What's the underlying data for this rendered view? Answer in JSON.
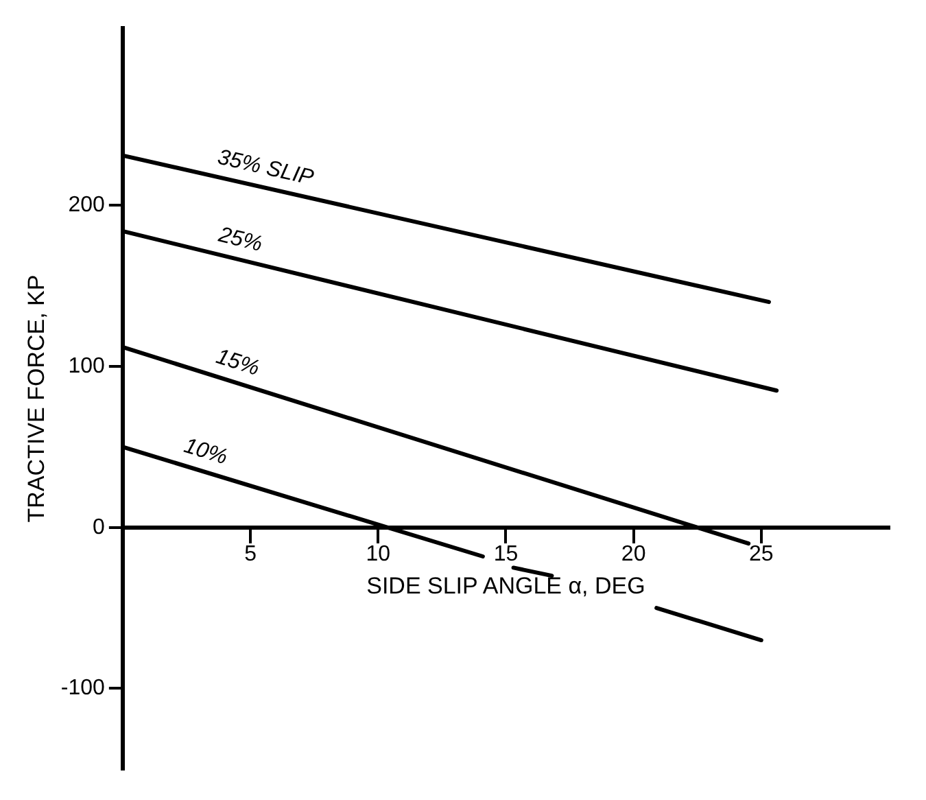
{
  "chart_data": {
    "type": "line",
    "xlabel": "SIDE SLIP ANGLE α, DEG",
    "ylabel": "TRACTIVE FORCE, KP",
    "xlim": [
      0,
      30
    ],
    "ylim": [
      -150,
      310
    ],
    "xticks": [
      5,
      10,
      15,
      20,
      25
    ],
    "yticks": [
      -100,
      0,
      100,
      200
    ],
    "legend": false,
    "grid": false,
    "marker": "none",
    "line_style": "solid",
    "series": [
      {
        "name": "35% SLIP",
        "color": "#000000",
        "x": [
          0,
          25.3
        ],
        "values": [
          231,
          140
        ]
      },
      {
        "name": "25%",
        "color": "#000000",
        "x": [
          0,
          25.6
        ],
        "values": [
          184,
          85
        ]
      },
      {
        "name": "15%",
        "color": "#000000",
        "x": [
          0,
          24.5
        ],
        "values": [
          112,
          -10
        ]
      },
      {
        "name": "10%",
        "color": "#000000",
        "x": [
          0,
          14.1,
          null,
          15.3,
          16.8,
          null,
          20.9,
          25
        ],
        "values": [
          50,
          -18,
          null,
          -25,
          -30,
          null,
          -50,
          -70
        ]
      }
    ]
  }
}
